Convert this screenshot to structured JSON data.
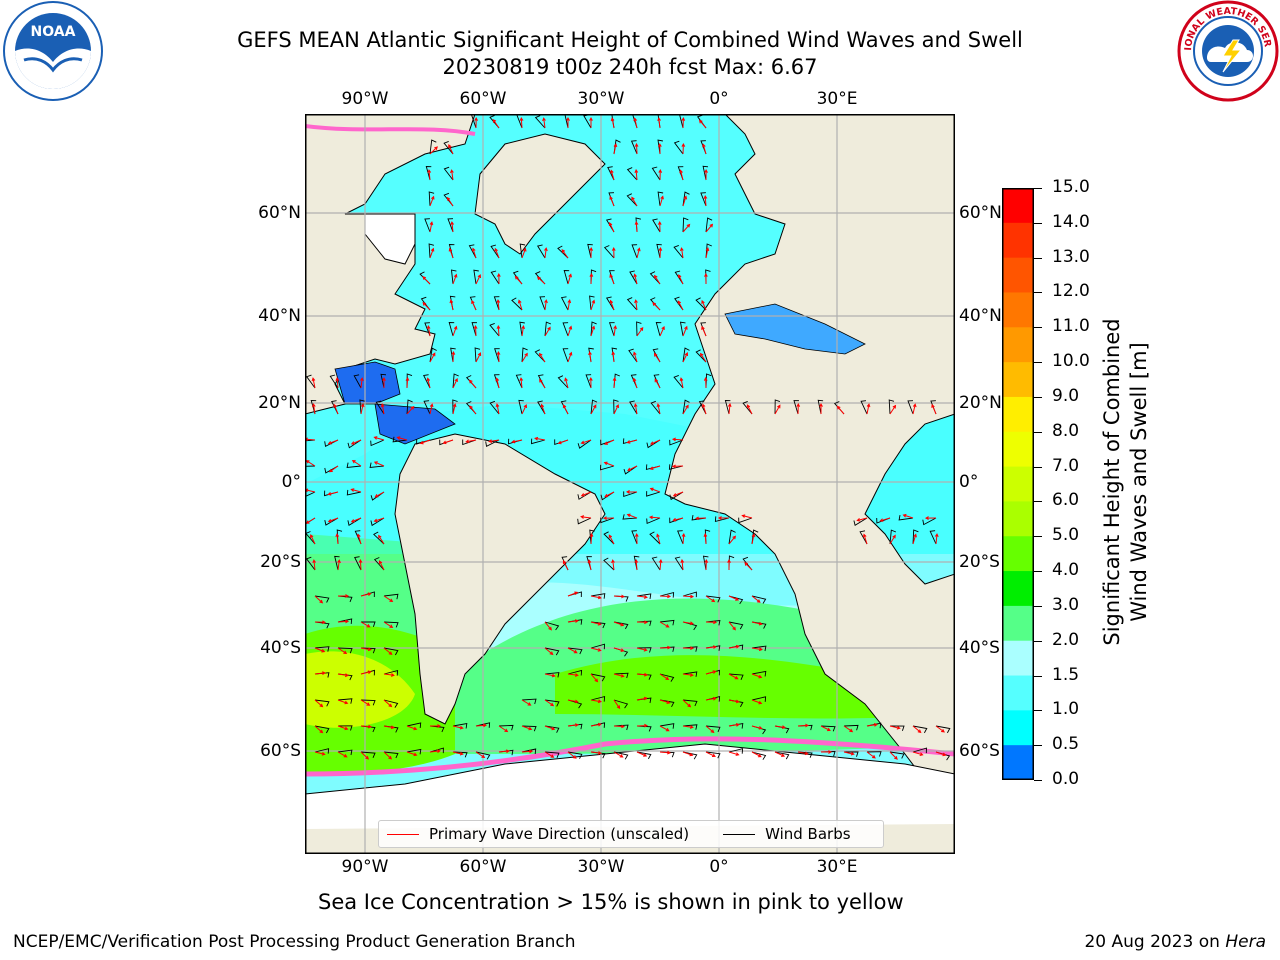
{
  "title": {
    "line1": "GEFS MEAN Atlantic Significant Height of Combined Wind Waves and Swell",
    "line2": "20230819 t00z 240h fcst   Max: 6.67"
  },
  "logos": {
    "left": {
      "name": "NOAA",
      "ring_text": "NATIONAL OCEANIC AND ATMOSPHERIC ADMINISTRATION · U.S. DEPARTMENT OF COMMERCE",
      "color": "#1a5fb4"
    },
    "right": {
      "name": "NATIONAL WEATHER SERVICE",
      "color": "#d0021b"
    }
  },
  "map": {
    "lon_ticks": [
      "90°W",
      "60°W",
      "30°W",
      "0°",
      "30°E"
    ],
    "lat_ticks_left": [
      "60°N",
      "40°N",
      "20°N",
      "0°",
      "20°S",
      "40°S",
      "60°S"
    ],
    "lat_ticks_right": [
      "60°N",
      "40°N",
      "20°N",
      "0°",
      "20°S",
      "40°S",
      "60°S"
    ],
    "colors": {
      "land": "#efecdc",
      "ice": "#ff66cc",
      "barb": "#000000",
      "arrow": "#ff0000"
    }
  },
  "legend": {
    "wave_label": "Primary Wave Direction (unscaled)",
    "barb_label": "Wind Barbs",
    "wave_color": "#ff0000",
    "barb_color": "#000000"
  },
  "colorbar": {
    "title_line1": "Significant Height of Combined",
    "title_line2": "Wind Waves and Swell [m]",
    "labels": [
      "15.0",
      "14.0",
      "13.0",
      "12.0",
      "11.0",
      "10.0",
      "9.0",
      "8.0",
      "7.0",
      "6.0",
      "5.0",
      "4.0",
      "3.0",
      "2.0",
      "1.5",
      "1.0",
      "0.5",
      "0.0"
    ],
    "colors_top_to_bottom": [
      "#ff0000",
      "#ff3300",
      "#ff5500",
      "#ff7700",
      "#ff9900",
      "#ffbb00",
      "#ffee00",
      "#eeff00",
      "#ccff00",
      "#aaff00",
      "#66ff00",
      "#00ee00",
      "#55ff88",
      "#aaffff",
      "#55ffff",
      "#00ffff",
      "#0077ff",
      "#0000ff"
    ]
  },
  "caption": "Sea Ice Concentration > 15% is shown in pink to yellow",
  "footer": {
    "left": "NCEP/EMC/Verification Post Processing Product Generation Branch",
    "right_prefix": "20 Aug 2023 on ",
    "right_host": "Hera"
  }
}
